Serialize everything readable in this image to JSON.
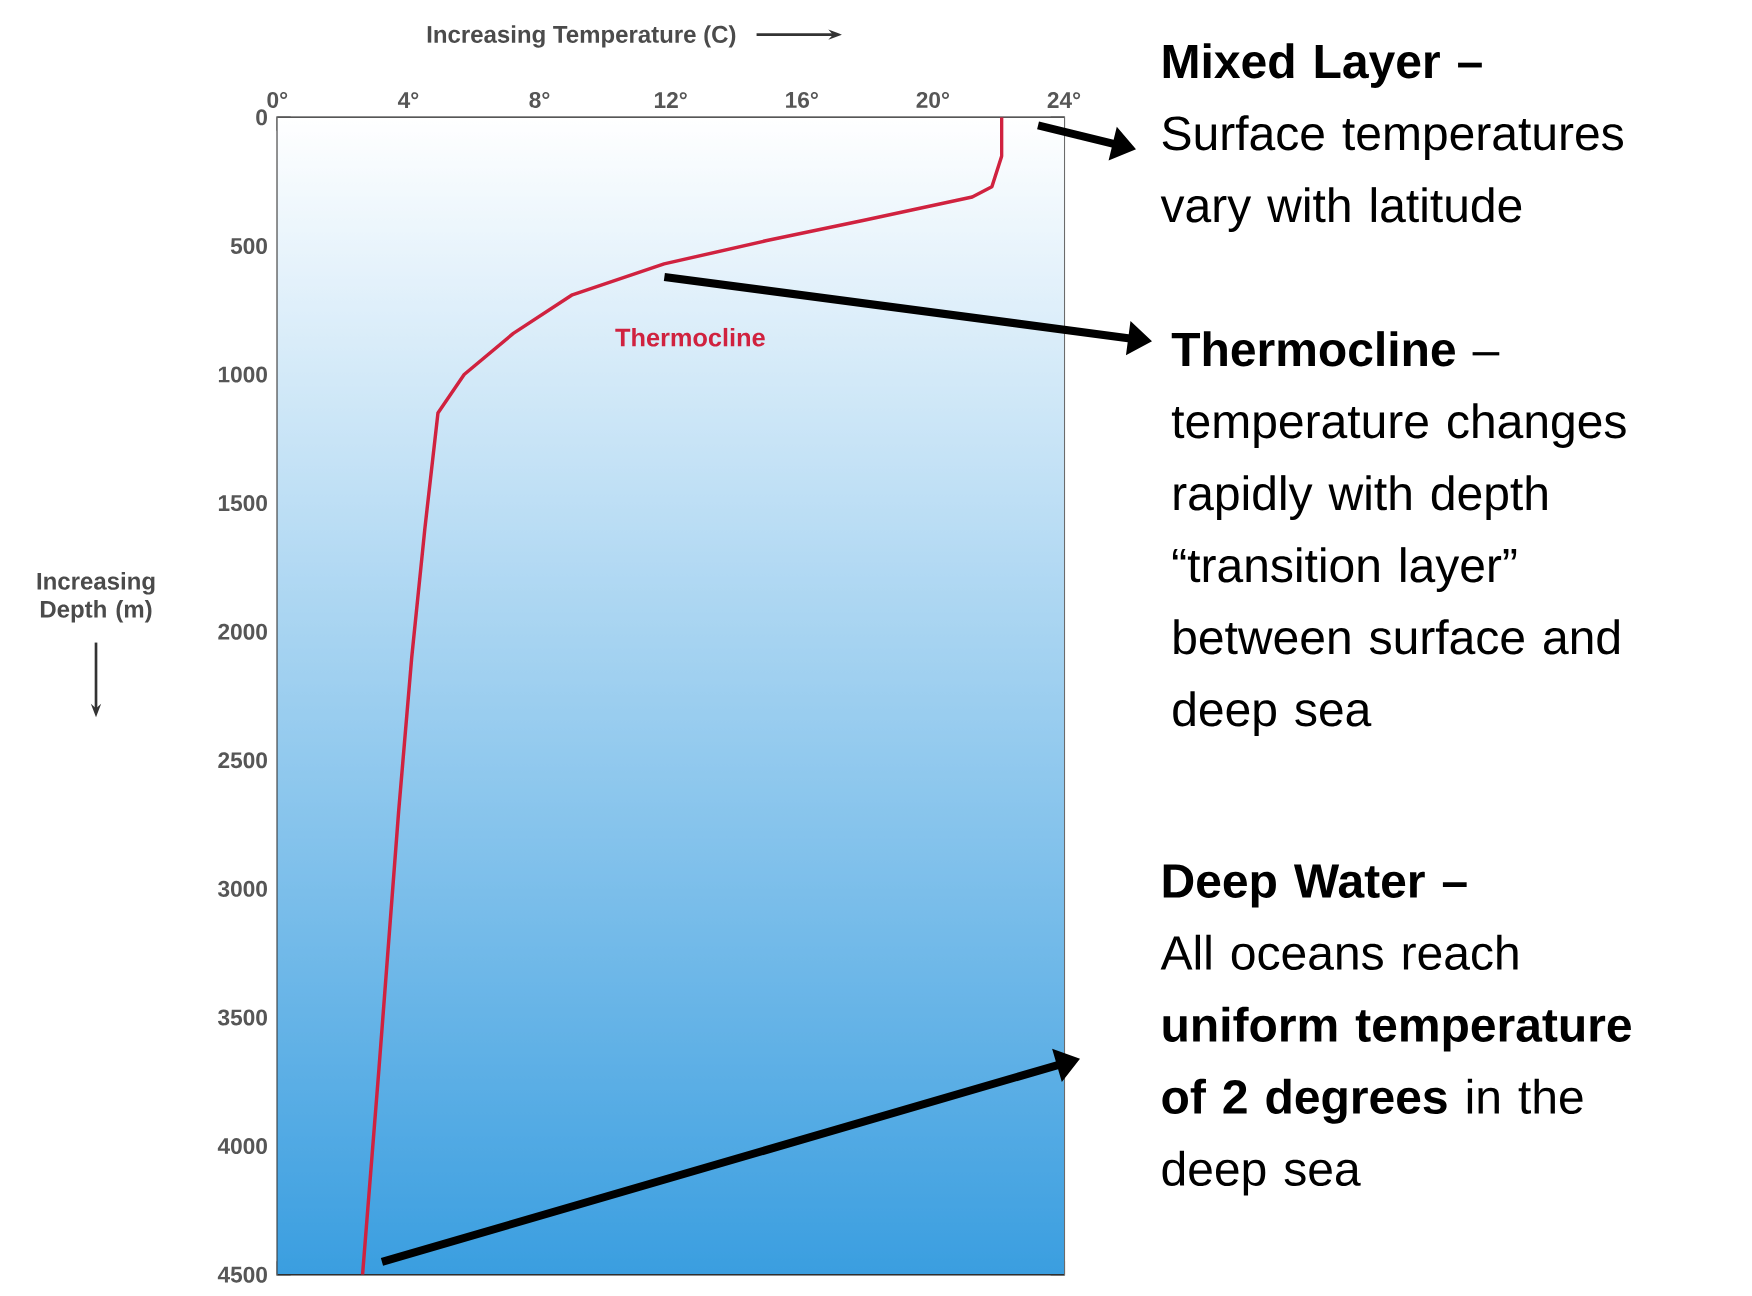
{
  "chart_data": {
    "type": "line",
    "xlabel": "Increasing Temperature (C)",
    "ylabel": "Increasing Depth (m)",
    "xlim": [
      0,
      24
    ],
    "ylim": [
      4500,
      0
    ],
    "xticks": [
      {
        "value": 0,
        "label": "0°"
      },
      {
        "value": 4,
        "label": "4°"
      },
      {
        "value": 8,
        "label": "8°"
      },
      {
        "value": 12,
        "label": "12°"
      },
      {
        "value": 16,
        "label": "16°"
      },
      {
        "value": 20,
        "label": "20°"
      },
      {
        "value": 24,
        "label": "24°"
      }
    ],
    "yticks": [
      0,
      500,
      1000,
      1500,
      2000,
      2500,
      3000,
      3500,
      4000,
      4500
    ],
    "series": [
      {
        "name": "Thermocline",
        "color": "#d0223f",
        "x": [
          22.1,
          22.1,
          21.8,
          21.2,
          17.9,
          14.9,
          11.8,
          9.0,
          7.2,
          5.7,
          4.9,
          4.5,
          4.1,
          3.7,
          3.1,
          2.6
        ],
        "values": [
          0,
          150,
          270,
          310,
          400,
          480,
          570,
          690,
          840,
          1000,
          1150,
          1600,
          2100,
          2700,
          3700,
          4500
        ]
      }
    ],
    "annotations": [
      "Mixed Layer –",
      "Surface temperatures vary with latitude",
      "**Thermocline** –",
      "temperature changes rapidly with depth “transition layer” between surface and deep sea",
      "Deep Water –",
      "All oceans reach **uniform temperature of 2 degrees** in the deep sea"
    ]
  }
}
